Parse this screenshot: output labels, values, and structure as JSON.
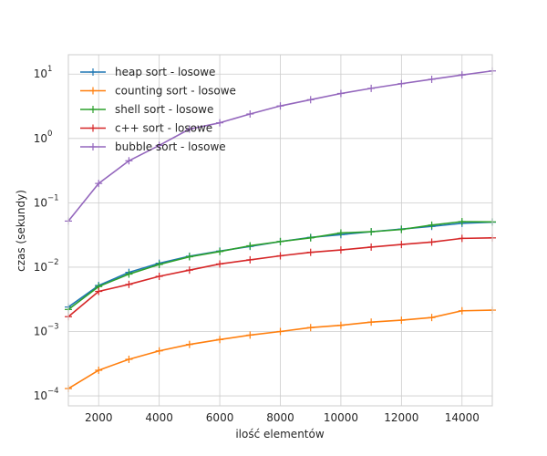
{
  "chart_data": {
    "type": "line",
    "title": "",
    "xlabel": "ilość elementów",
    "ylabel": "czas (sekundy)",
    "yscale": "log",
    "xlim": [
      1000,
      15000
    ],
    "ylim": [
      7e-05,
      20
    ],
    "grid": true,
    "legend_position": "top-left",
    "x_ticks": [
      2000,
      4000,
      6000,
      8000,
      10000,
      12000,
      14000
    ],
    "x_tick_labels": [
      "2000",
      "4000",
      "6000",
      "8000",
      "10000",
      "12000",
      "14000"
    ],
    "y_ticks": [
      0.0001,
      0.001,
      0.01,
      0.1,
      1,
      10
    ],
    "y_tick_labels": [
      {
        "base": "10",
        "exp": "−4"
      },
      {
        "base": "10",
        "exp": "−3"
      },
      {
        "base": "10",
        "exp": "−2"
      },
      {
        "base": "10",
        "exp": "−1"
      },
      {
        "base": "10",
        "exp": "0"
      },
      {
        "base": "10",
        "exp": "1"
      }
    ],
    "x": [
      1000,
      2000,
      3000,
      4000,
      5000,
      6000,
      7000,
      8000,
      9000,
      10000,
      11000,
      12000,
      13000,
      14000,
      15000
    ],
    "series": [
      {
        "name": "heap sort - losowe",
        "color": "#1f77b4",
        "values": [
          0.0024,
          0.0052,
          0.0083,
          0.0115,
          0.0148,
          0.0178,
          0.021,
          0.025,
          0.029,
          0.032,
          0.0355,
          0.039,
          0.043,
          0.048,
          0.05
        ]
      },
      {
        "name": "counting sort - losowe",
        "color": "#ff7f0e",
        "values": [
          0.00013,
          0.00025,
          0.00037,
          0.0005,
          0.00063,
          0.00075,
          0.00088,
          0.001,
          0.00115,
          0.00125,
          0.0014,
          0.0015,
          0.00165,
          0.0021,
          0.00215
        ]
      },
      {
        "name": "shell sort - losowe",
        "color": "#2ca02c",
        "values": [
          0.0022,
          0.005,
          0.0078,
          0.011,
          0.0145,
          0.0175,
          0.0215,
          0.025,
          0.0285,
          0.034,
          0.0355,
          0.0385,
          0.045,
          0.051,
          0.0505
        ]
      },
      {
        "name": "c++ sort - losowe",
        "color": "#d62728",
        "values": [
          0.0017,
          0.0042,
          0.0054,
          0.0072,
          0.009,
          0.0112,
          0.013,
          0.015,
          0.017,
          0.0185,
          0.0205,
          0.0225,
          0.0245,
          0.028,
          0.0285
        ]
      },
      {
        "name": "bubble sort - losowe",
        "color": "#9467bd",
        "values": [
          0.052,
          0.2,
          0.45,
          0.78,
          1.4,
          1.75,
          2.4,
          3.2,
          4.0,
          5.0,
          6.0,
          7.1,
          8.3,
          9.7,
          11.2
        ]
      }
    ]
  }
}
